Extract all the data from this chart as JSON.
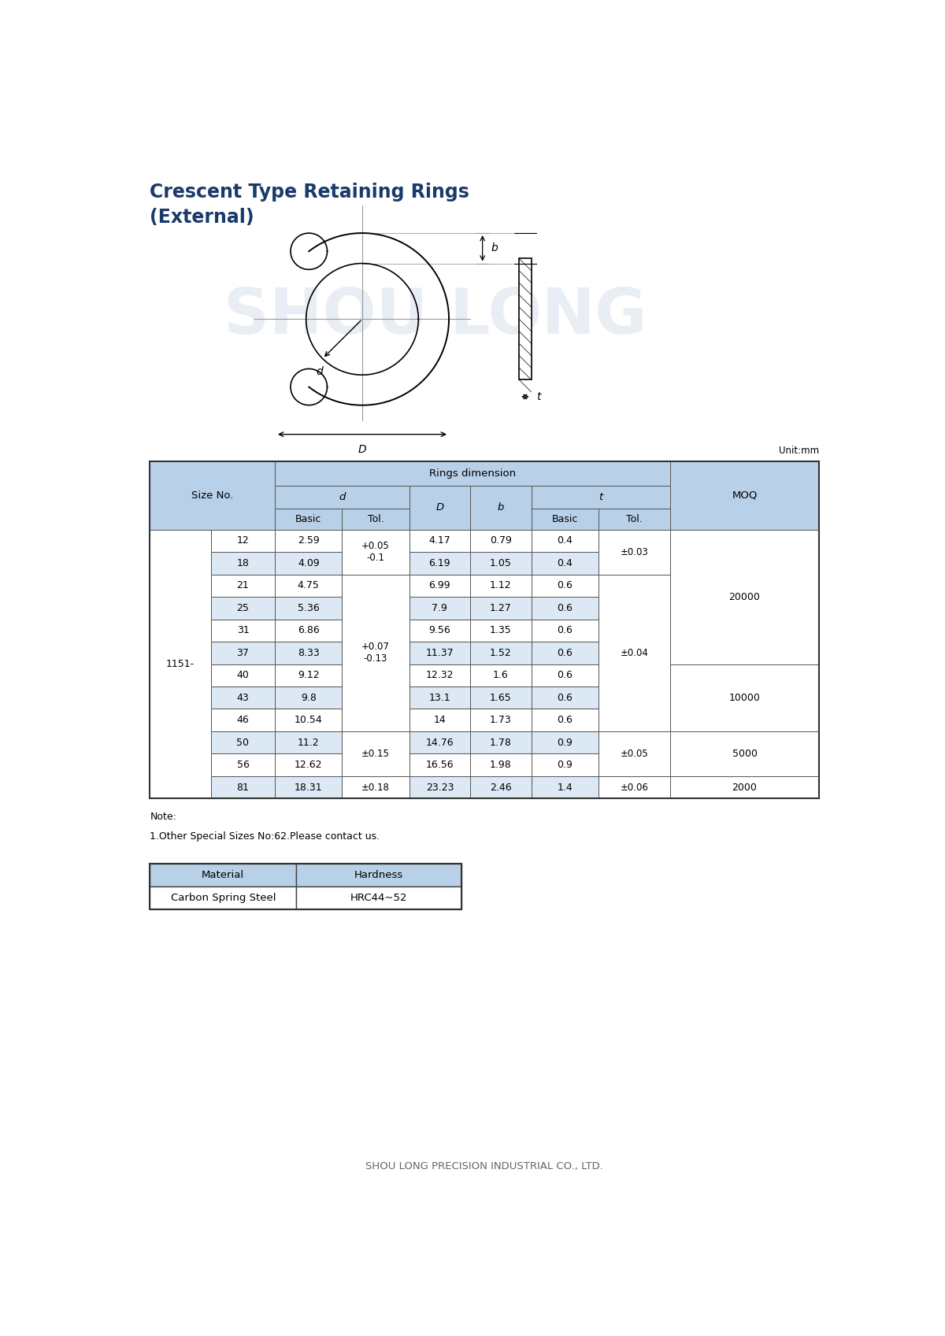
{
  "title_line1": "Crescent Type Retaining Rings",
  "title_line2": "(External)",
  "title_color": "#1a3a6b",
  "unit_text": "Unit:mm",
  "table_header_bg": "#b8d0e8",
  "table_row_bg_even": "#dce8f3",
  "table_row_bg_odd": "#ffffff",
  "rings_dimension_label": "Rings dimension",
  "rows": [
    [
      "12",
      "2.59",
      "+0.05\n-0.1",
      "4.17",
      "0.79",
      "0.4",
      "±0.03",
      ""
    ],
    [
      "18",
      "4.09",
      "+0.05\n-0.1",
      "6.19",
      "1.05",
      "0.4",
      "±0.03",
      "20000"
    ],
    [
      "21",
      "4.75",
      "+0.07\n-0.13",
      "6.99",
      "1.12",
      "0.6",
      "±0.04",
      ""
    ],
    [
      "25",
      "5.36",
      "+0.07\n-0.13",
      "7.9",
      "1.27",
      "0.6",
      "±0.04",
      ""
    ],
    [
      "31",
      "6.86",
      "+0.07\n-0.13",
      "9.56",
      "1.35",
      "0.6",
      "±0.04",
      "20000"
    ],
    [
      "37",
      "8.33",
      "+0.07\n-0.13",
      "11.37",
      "1.52",
      "0.6",
      "±0.04",
      ""
    ],
    [
      "40",
      "9.12",
      "+0.07\n-0.13",
      "12.32",
      "1.6",
      "0.6",
      "±0.04",
      "10000"
    ],
    [
      "43",
      "9.8",
      "+0.07\n-0.13",
      "13.1",
      "1.65",
      "0.6",
      "±0.04",
      ""
    ],
    [
      "46",
      "10.54",
      "+0.07\n-0.13",
      "14",
      "1.73",
      "0.6",
      "±0.04",
      ""
    ],
    [
      "50",
      "11.2",
      "±0.15",
      "14.76",
      "1.78",
      "0.9",
      "±0.05",
      "5000"
    ],
    [
      "56",
      "12.62",
      "±0.15",
      "16.56",
      "1.98",
      "0.9",
      "±0.05",
      ""
    ],
    [
      "81",
      "18.31",
      "±0.18",
      "23.23",
      "2.46",
      "1.4",
      "±0.06",
      "2000"
    ]
  ],
  "note_line1": "Note:",
  "note_line2": "1.Other Special Sizes No:62.Please contact us.",
  "material_header": "Material",
  "hardness_header": "Hardness",
  "material_value": "Carbon Spring Steel",
  "hardness_value": "HRC44~52",
  "footer_text": "SHOU LONG PRECISION INDUSTRIAL CO., LTD.",
  "watermark_text": "SHOU LONG",
  "watermark_color": "#c8d4e4"
}
